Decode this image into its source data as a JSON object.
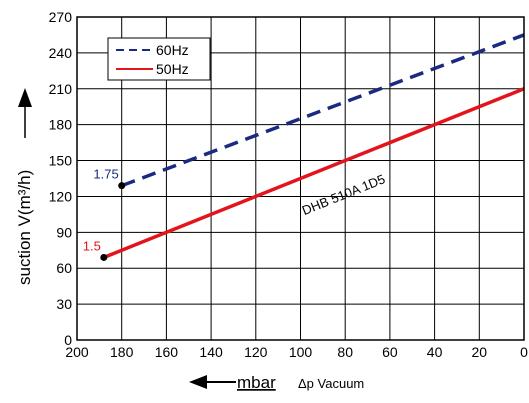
{
  "chart_data": {
    "type": "line",
    "xlim": [
      200,
      0
    ],
    "ylim": [
      0,
      270
    ],
    "x_ticks": [
      200,
      180,
      160,
      140,
      120,
      100,
      80,
      60,
      40,
      20,
      0
    ],
    "y_ticks": [
      0,
      30,
      60,
      90,
      120,
      150,
      180,
      210,
      240,
      270
    ],
    "ylabel": "suction V(m³/h)",
    "xlabel_unit": "mbar",
    "xlabel_desc": "Δp  Vacuum",
    "grid": true,
    "legend_position": "top-left",
    "series": [
      {
        "name": "60Hz",
        "style": "dashed",
        "color": "#1b2a80",
        "x": [
          180,
          0
        ],
        "y": [
          129,
          255
        ],
        "endpoint_label": "1.75"
      },
      {
        "name": "50Hz",
        "style": "solid",
        "color": "#e3141b",
        "x": [
          188,
          0
        ],
        "y": [
          69,
          210
        ],
        "endpoint_label": "1.5"
      }
    ],
    "annotations": [
      {
        "text": "DHB 510A 1D5",
        "x": 80,
        "y": 118
      }
    ]
  }
}
